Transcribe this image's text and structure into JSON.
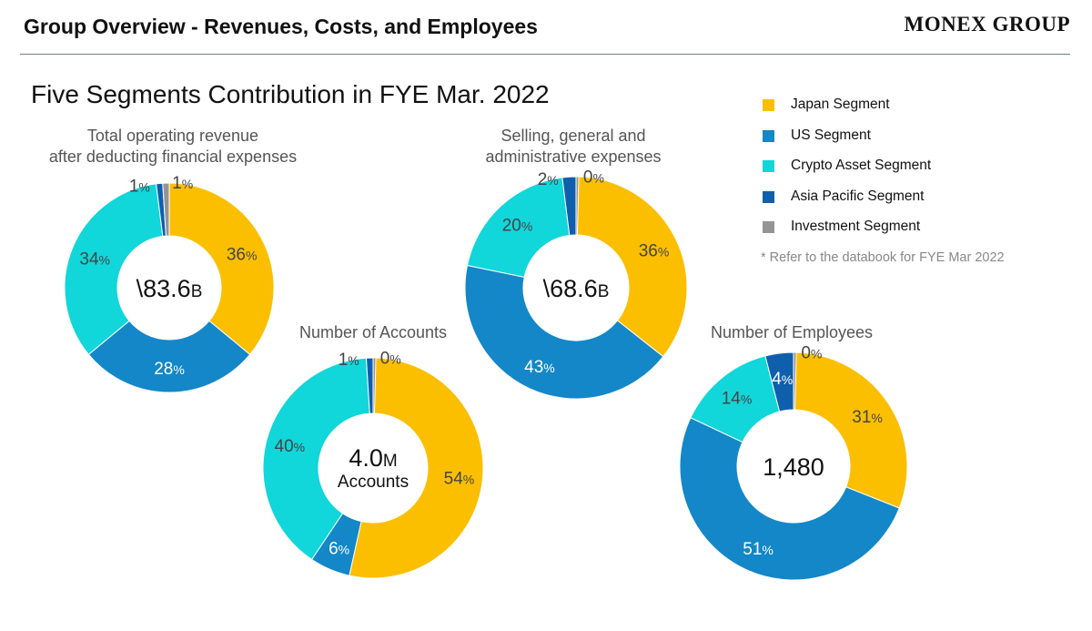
{
  "header": {
    "title": "Group Overview - Revenues, Costs, and Employees",
    "brand": "MONEX GROUP"
  },
  "main_title": "Five Segments Contribution in FYE Mar. 2022",
  "colors": {
    "Japan Segment": "#fbbf00",
    "US Segment": "#1387c8",
    "Crypto Asset Segment": "#11d6da",
    "Asia Pacific Segment": "#0f5fad",
    "Investment Segment": "#949494"
  },
  "legend": {
    "items": [
      "Japan Segment",
      "US Segment",
      "Crypto Asset Segment",
      "Asia Pacific Segment",
      "Investment Segment"
    ],
    "footnote": "* Refer to the databook for FYE Mar 2022"
  },
  "chart_data": [
    {
      "type": "pie",
      "title": "Total operating revenue\nafter deducting financial expenses",
      "center_value": "\\83.6",
      "center_unit": "B",
      "categories": [
        "Japan Segment",
        "US Segment",
        "Crypto Asset Segment",
        "Asia Pacific Segment",
        "Investment Segment"
      ],
      "values": [
        36,
        28,
        34,
        1,
        1
      ],
      "labels": [
        "36",
        "28",
        "34",
        "1",
        "1"
      ],
      "unit": "%"
    },
    {
      "type": "pie",
      "title": "Selling, general and\nadministrative expenses",
      "center_value": "\\68.6",
      "center_unit": "B",
      "categories": [
        "Japan Segment",
        "US Segment",
        "Crypto Asset Segment",
        "Asia Pacific Segment",
        "Investment Segment"
      ],
      "values": [
        36,
        43,
        20,
        2,
        0
      ],
      "labels": [
        "36",
        "43",
        "20",
        "2",
        "0"
      ],
      "unit": "%"
    },
    {
      "type": "pie",
      "title": "Number of Accounts",
      "center_value": "4.0",
      "center_unit": "M",
      "center_sub": "Accounts",
      "categories": [
        "Japan Segment",
        "US Segment",
        "Crypto Asset Segment",
        "Asia Pacific Segment",
        "Investment Segment"
      ],
      "values": [
        54,
        6,
        40,
        1,
        0
      ],
      "labels": [
        "54",
        "6",
        "40",
        "1",
        "0"
      ],
      "unit": "%"
    },
    {
      "type": "pie",
      "title": "Number of Employees",
      "center_value": "1,480",
      "center_unit": "",
      "categories": [
        "Japan Segment",
        "US Segment",
        "Crypto Asset Segment",
        "Asia Pacific Segment",
        "Investment Segment"
      ],
      "values": [
        31,
        51,
        14,
        4,
        0
      ],
      "labels": [
        "31",
        "51",
        "14",
        "4",
        "0"
      ],
      "unit": "%"
    }
  ]
}
